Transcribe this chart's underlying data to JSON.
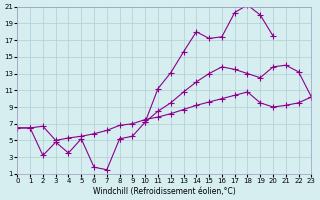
{
  "xlabel": "Windchill (Refroidissement éolien,°C)",
  "bg_color": "#d6eef0",
  "grid_color": "#b0cdd0",
  "line_color": "#8b008b",
  "xlim": [
    0,
    23
  ],
  "ylim": [
    1,
    21
  ],
  "xticks": [
    0,
    1,
    2,
    3,
    4,
    5,
    6,
    7,
    8,
    9,
    10,
    11,
    12,
    13,
    14,
    15,
    16,
    17,
    18,
    19,
    20,
    21,
    22,
    23
  ],
  "yticks": [
    1,
    3,
    5,
    7,
    9,
    11,
    13,
    15,
    17,
    19,
    21
  ],
  "lineA_x": [
    0,
    1,
    2,
    3,
    4,
    5,
    6,
    7,
    8
  ],
  "lineA_y": [
    6.5,
    6.5,
    3.2,
    4.8,
    3.5,
    5.2,
    1.8,
    1.5,
    5.2
  ],
  "lineB_x": [
    10,
    11,
    12,
    13,
    14,
    15,
    16,
    17,
    18,
    19,
    20
  ],
  "lineB_y": [
    7.2,
    11.2,
    13.1,
    15.6,
    18.0,
    17.2,
    17.4,
    20.3,
    21.2,
    20.0,
    17.5
  ],
  "lineC_x": [
    0,
    1,
    2,
    3,
    4,
    5,
    6,
    7,
    8,
    9,
    10,
    11,
    12,
    13,
    14,
    15,
    16,
    17,
    18,
    19,
    20,
    21,
    22,
    23
  ],
  "lineC_y": [
    6.5,
    6.5,
    6.7,
    5.0,
    5.3,
    5.5,
    5.8,
    6.2,
    6.8,
    7.0,
    7.5,
    7.8,
    8.2,
    8.7,
    9.2,
    9.6,
    10.0,
    10.4,
    10.8,
    9.5,
    9.0,
    9.2,
    9.5,
    10.2
  ],
  "lineD_x": [
    8,
    9,
    10,
    11,
    12,
    13,
    14,
    15,
    16,
    17,
    18,
    19,
    20,
    21,
    22,
    23
  ],
  "lineD_y": [
    5.2,
    5.5,
    7.2,
    8.5,
    9.5,
    10.8,
    12.0,
    13.0,
    13.8,
    13.5,
    13.0,
    12.5,
    13.8,
    14.0,
    13.2,
    10.2
  ]
}
